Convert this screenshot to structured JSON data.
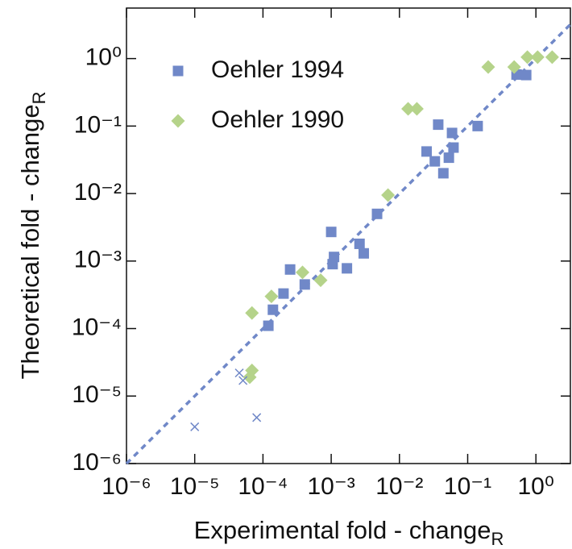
{
  "chart_data": {
    "type": "scatter",
    "x_label": "Experimental fold - change",
    "x_label_sub": "R",
    "y_label": "Theoretical fold - change",
    "y_label_sub": "R",
    "xscale": "log",
    "yscale": "log",
    "xlim": [
      1e-06,
      3.2
    ],
    "ylim": [
      1e-06,
      5.6
    ],
    "xticks": [
      {
        "value": 1e-06,
        "label": "10⁻⁶"
      },
      {
        "value": 1e-05,
        "label": "10⁻⁵"
      },
      {
        "value": 0.0001,
        "label": "10⁻⁴"
      },
      {
        "value": 0.001,
        "label": "10⁻³"
      },
      {
        "value": 0.01,
        "label": "10⁻²"
      },
      {
        "value": 0.1,
        "label": "10⁻¹"
      },
      {
        "value": 1,
        "label": "10⁰"
      }
    ],
    "yticks": [
      {
        "value": 1e-06,
        "label": "10⁻⁶"
      },
      {
        "value": 1e-05,
        "label": "10⁻⁵"
      },
      {
        "value": 0.0001,
        "label": "10⁻⁴"
      },
      {
        "value": 0.001,
        "label": "10⁻³"
      },
      {
        "value": 0.01,
        "label": "10⁻²"
      },
      {
        "value": 0.1,
        "label": "10⁻¹"
      },
      {
        "value": 1,
        "label": "10⁰"
      }
    ],
    "identity_line": true,
    "identity_color": "#7088c8",
    "legend": "upper left",
    "series": [
      {
        "name": "Oehler 1994",
        "marker": "square",
        "color": "#7088c8",
        "x": [
          0.00012,
          0.00014,
          0.0002,
          0.00025,
          0.00041,
          0.001,
          0.0011,
          0.00105,
          0.0017,
          0.0026,
          0.003,
          0.0047,
          0.025,
          0.033,
          0.037,
          0.044,
          0.053,
          0.059,
          0.062,
          0.14,
          0.52,
          0.72
        ],
        "y": [
          0.00011,
          0.00019,
          0.00033,
          0.00075,
          0.00045,
          0.0027,
          0.00115,
          0.0009,
          0.00078,
          0.0018,
          0.0013,
          0.005,
          0.042,
          0.03,
          0.105,
          0.02,
          0.034,
          0.079,
          0.048,
          0.1,
          0.58,
          0.57
        ]
      },
      {
        "name": "Oehler 1990",
        "marker": "diamond",
        "color": "#b5d38a",
        "x": [
          6.4e-05,
          6.9e-05,
          6.9e-05,
          0.000133,
          0.00038,
          0.0007,
          0.0068,
          0.0134,
          0.018,
          0.2,
          0.48,
          0.75,
          1.06,
          1.73
        ],
        "y": [
          1.9e-05,
          2.4e-05,
          0.00017,
          0.0003,
          0.00068,
          0.00052,
          0.0095,
          0.18,
          0.18,
          0.75,
          0.75,
          1.05,
          1.05,
          1.05
        ]
      },
      {
        "marker": "cross",
        "color": "#7088c8",
        "x": [
          4.5e-05,
          5.1e-05,
          1e-05,
          8.1e-05
        ],
        "y": [
          2.2e-05,
          1.7e-05,
          3.5e-06,
          4.8e-06
        ]
      }
    ]
  }
}
